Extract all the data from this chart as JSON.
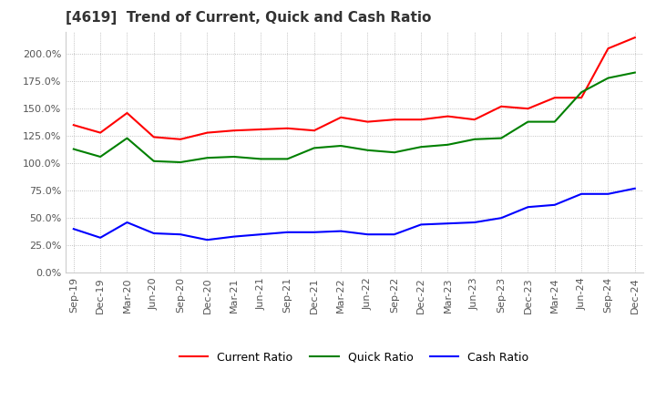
{
  "title": "[4619]  Trend of Current, Quick and Cash Ratio",
  "x_labels": [
    "Sep-19",
    "Dec-19",
    "Mar-20",
    "Jun-20",
    "Sep-20",
    "Dec-20",
    "Mar-21",
    "Jun-21",
    "Sep-21",
    "Dec-21",
    "Mar-22",
    "Jun-22",
    "Sep-22",
    "Dec-22",
    "Mar-23",
    "Jun-23",
    "Sep-23",
    "Dec-23",
    "Mar-24",
    "Jun-24",
    "Sep-24",
    "Dec-24"
  ],
  "current_ratio": [
    135,
    128,
    146,
    124,
    122,
    128,
    130,
    131,
    132,
    130,
    142,
    138,
    140,
    140,
    143,
    140,
    152,
    150,
    160,
    160,
    205,
    215
  ],
  "quick_ratio": [
    113,
    106,
    123,
    102,
    101,
    105,
    106,
    104,
    104,
    114,
    116,
    112,
    110,
    115,
    117,
    122,
    123,
    138,
    138,
    165,
    178,
    183
  ],
  "cash_ratio": [
    40,
    32,
    46,
    36,
    35,
    30,
    33,
    35,
    37,
    37,
    38,
    35,
    35,
    44,
    45,
    46,
    50,
    60,
    62,
    72,
    72,
    77
  ],
  "ylim": [
    0,
    220
  ],
  "yticks": [
    0,
    25,
    50,
    75,
    100,
    125,
    150,
    175,
    200
  ],
  "current_color": "#ff0000",
  "quick_color": "#008000",
  "cash_color": "#0000ff",
  "background_color": "#ffffff",
  "grid_color": "#b0b0b0",
  "title_fontsize": 11,
  "label_fontsize": 9,
  "tick_fontsize": 8
}
